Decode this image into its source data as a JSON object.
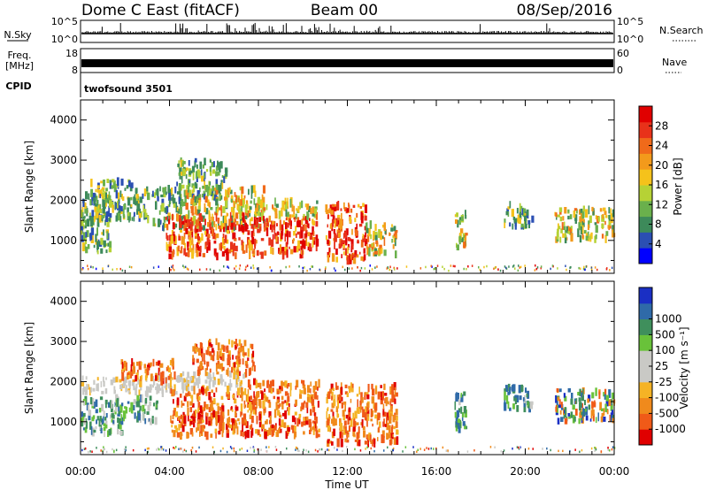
{
  "header": {
    "station": "Dome C East (fitACF)",
    "beam": "Beam 00",
    "date": "08/Sep/2016"
  },
  "nsky_panel": {
    "left_label": "N.Sky",
    "left_ticks": [
      "10^5",
      "10^0"
    ],
    "right_label": "N.Search",
    "right_ticks": [
      "10^5",
      "10^0"
    ]
  },
  "freq_panel": {
    "left_label_line1": "Freq.",
    "left_label_line2": "[MHz]",
    "left_ticks": [
      "18",
      "8"
    ],
    "right_label": "Nave",
    "right_ticks": [
      "60",
      "0"
    ],
    "cpid_label": "CPID",
    "cpid_value": "twofsound 3501"
  },
  "colors": {
    "power_scale": [
      "#0000ff",
      "#2b4fb3",
      "#3d8a5a",
      "#6ab04c",
      "#b6d235",
      "#f5c21b",
      "#f39a1b",
      "#f06a1a",
      "#e8321a",
      "#e00000"
    ],
    "velocity_scale": [
      "#e00000",
      "#f05a18",
      "#f08a1c",
      "#f5b325",
      "#c9c9c5",
      "#c9c9c5",
      "#69c23a",
      "#3f8f5c",
      "#2f6aa8",
      "#1a2fc4"
    ]
  },
  "chart_data": [
    {
      "type": "heatmap",
      "name": "power",
      "xlabel": "",
      "ylabel": "Slant Range [km]",
      "x_unit": "hours UT",
      "xlim": [
        0,
        24
      ],
      "ylim": [
        180,
        4500
      ],
      "y_ticks": [
        "1000",
        "2000",
        "3000",
        "4000"
      ],
      "colorbar": {
        "label": "Power [dB]",
        "range": [
          0,
          32
        ],
        "ticks": [
          "4",
          "8",
          "12",
          "16",
          "20",
          "24",
          "28"
        ]
      },
      "regions": [
        {
          "t0": 0.0,
          "t1": 1.3,
          "r0": 700,
          "r1": 2200,
          "level": "weak"
        },
        {
          "t0": 0.4,
          "t1": 3.0,
          "r0": 1500,
          "r1": 2500,
          "level": "weak"
        },
        {
          "t0": 3.2,
          "t1": 4.6,
          "r0": 1300,
          "r1": 2300,
          "level": "weak"
        },
        {
          "t0": 4.3,
          "t1": 6.5,
          "r0": 2000,
          "r1": 3000,
          "level": "weak"
        },
        {
          "t0": 4.5,
          "t1": 8.2,
          "r0": 1300,
          "r1": 2300,
          "level": "medium"
        },
        {
          "t0": 3.8,
          "t1": 10.6,
          "r0": 600,
          "r1": 1600,
          "level": "strong"
        },
        {
          "t0": 7.8,
          "t1": 10.6,
          "r0": 1600,
          "r1": 2000,
          "level": "medium"
        },
        {
          "t0": 11.0,
          "t1": 12.8,
          "r0": 450,
          "r1": 1900,
          "level": "strong"
        },
        {
          "t0": 12.8,
          "t1": 14.2,
          "r0": 600,
          "r1": 1400,
          "level": "medium"
        },
        {
          "t0": 16.8,
          "t1": 17.3,
          "r0": 800,
          "r1": 1700,
          "level": "medium"
        },
        {
          "t0": 19.0,
          "t1": 20.3,
          "r0": 1300,
          "r1": 1900,
          "level": "weak"
        },
        {
          "t0": 21.3,
          "t1": 24.0,
          "r0": 1000,
          "r1": 1800,
          "level": "medium"
        }
      ]
    },
    {
      "type": "heatmap",
      "name": "velocity",
      "xlabel": "Time UT",
      "ylabel": "Slant Range [km]",
      "x_unit": "hours UT",
      "xlim": [
        0,
        24
      ],
      "ylim": [
        180,
        4500
      ],
      "x_ticks": [
        "00:00",
        "04:00",
        "08:00",
        "12:00",
        "16:00",
        "20:00",
        "00:00"
      ],
      "y_ticks": [
        "1000",
        "2000",
        "3000",
        "4000"
      ],
      "colorbar": {
        "label": "Velocity [m s⁻¹]",
        "ticks": [
          "-1000",
          "-500",
          "-100",
          "-25",
          "25",
          "100",
          "500",
          "1000"
        ]
      },
      "regions": [
        {
          "t0": 0.0,
          "t1": 1.8,
          "r0": 700,
          "r1": 1600,
          "level": "green"
        },
        {
          "t0": 0.0,
          "t1": 4.8,
          "r0": 1700,
          "r1": 2100,
          "level": "grey"
        },
        {
          "t0": 1.8,
          "t1": 4.2,
          "r0": 2000,
          "r1": 2500,
          "level": "orange"
        },
        {
          "t0": 1.8,
          "t1": 3.4,
          "r0": 1000,
          "r1": 1600,
          "level": "green"
        },
        {
          "t0": 4.4,
          "t1": 7.4,
          "r0": 1800,
          "r1": 2200,
          "level": "grey"
        },
        {
          "t0": 5.0,
          "t1": 7.8,
          "r0": 2200,
          "r1": 3000,
          "level": "orange"
        },
        {
          "t0": 4.0,
          "t1": 10.7,
          "r0": 650,
          "r1": 1800,
          "level": "orange"
        },
        {
          "t0": 7.5,
          "t1": 10.7,
          "r0": 1800,
          "r1": 2000,
          "level": "orange"
        },
        {
          "t0": 11.0,
          "t1": 14.2,
          "r0": 450,
          "r1": 1900,
          "level": "orange"
        },
        {
          "t0": 16.8,
          "t1": 17.3,
          "r0": 800,
          "r1": 1800,
          "level": "green"
        },
        {
          "t0": 19.0,
          "t1": 20.3,
          "r0": 1300,
          "r1": 1900,
          "level": "green"
        },
        {
          "t0": 21.3,
          "t1": 24.0,
          "r0": 1000,
          "r1": 1800,
          "level": "mixed"
        }
      ]
    }
  ]
}
